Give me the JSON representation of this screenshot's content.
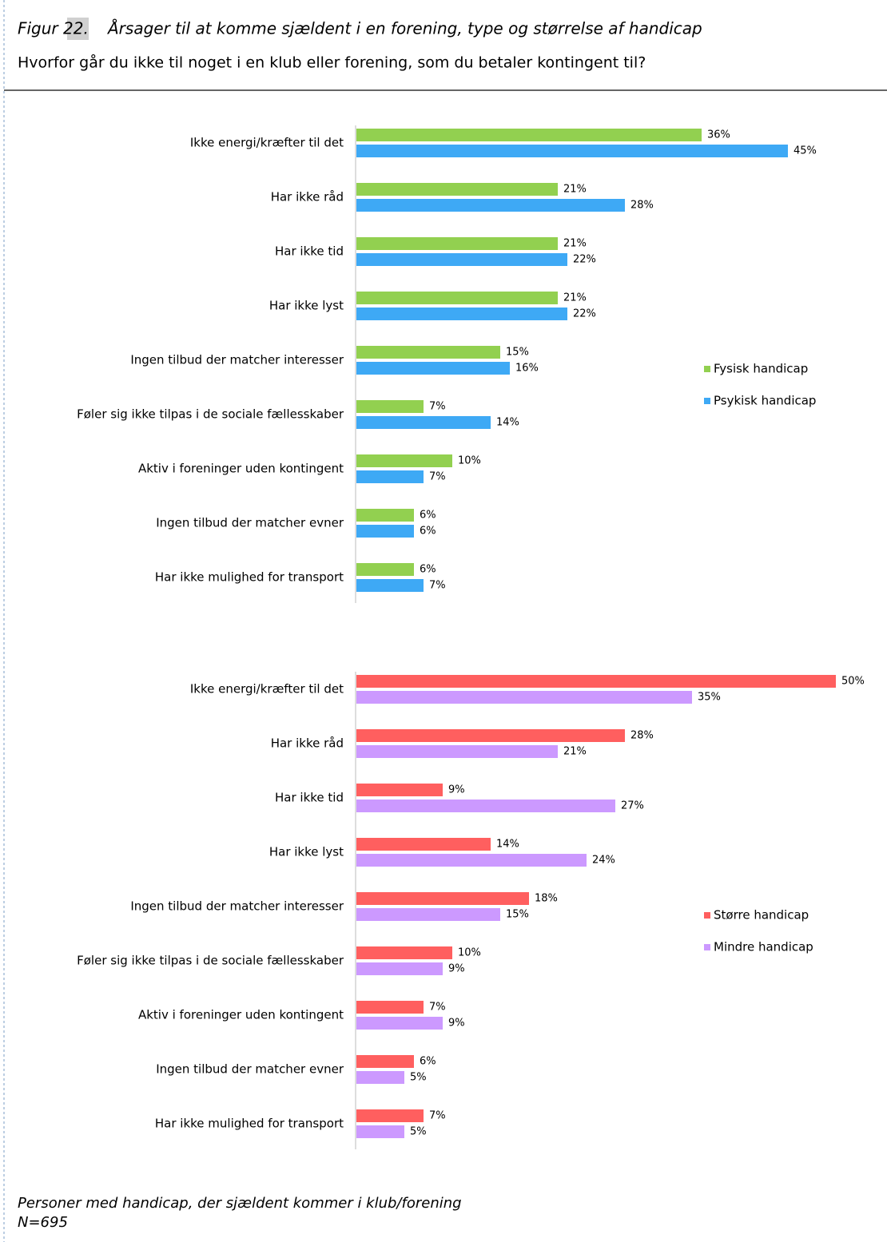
{
  "figure": {
    "label": "Figur 22.",
    "title": "Årsager til at komme sjældent i en forening, type og størrelse af handicap",
    "question": "Hvorfor går du ikke til noget i en klub eller forening, som du betaler kontingent til?",
    "note": "Personer med handicap, der sjældent kommer i klub/forening",
    "n": "N=695"
  },
  "chart_data": [
    {
      "type": "bar",
      "orientation": "horizontal",
      "categories": [
        "Ikke energi/kræfter til det",
        "Har ikke råd",
        "Har ikke tid",
        "Har ikke lyst",
        "Ingen tilbud der matcher interesser",
        "Føler sig ikke tilpas i de sociale fællesskaber",
        "Aktiv i foreninger uden kontingent",
        "Ingen tilbud der matcher evner",
        "Har ikke mulighed for transport"
      ],
      "series": [
        {
          "name": "Fysisk handicap",
          "color": "#92d050",
          "values": [
            36,
            21,
            21,
            21,
            15,
            7,
            10,
            6,
            6
          ],
          "value_labels": [
            "36%",
            "21%",
            "21%",
            "21%",
            "15%",
            "7%",
            "10%",
            "6%",
            "6%"
          ]
        },
        {
          "name": "Psykisk handicap",
          "color": "#3ea9f5",
          "values": [
            45,
            28,
            22,
            22,
            16,
            14,
            7,
            6,
            7
          ],
          "value_labels": [
            "45%",
            "28%",
            "22%",
            "22%",
            "16%",
            "14%",
            "7%",
            "6%",
            "7%"
          ]
        }
      ],
      "legend": "right"
    },
    {
      "type": "bar",
      "orientation": "horizontal",
      "categories": [
        "Ikke energi/kræfter til det",
        "Har ikke råd",
        "Har ikke tid",
        "Har ikke lyst",
        "Ingen tilbud der matcher interesser",
        "Føler sig ikke tilpas i de sociale fællesskaber",
        "Aktiv i foreninger uden kontingent",
        "Ingen tilbud der matcher evner",
        "Har ikke mulighed for transport"
      ],
      "series": [
        {
          "name": "Større handicap",
          "color": "#ff5f5f",
          "values": [
            50,
            28,
            9,
            14,
            18,
            10,
            7,
            6,
            7
          ],
          "value_labels": [
            "50%",
            "28%",
            "9%",
            "14%",
            "18%",
            "10%",
            "7%",
            "6%",
            "7%"
          ]
        },
        {
          "name": "Mindre handicap",
          "color": "#cc99ff",
          "values": [
            35,
            21,
            27,
            24,
            15,
            9,
            9,
            5,
            5
          ],
          "value_labels": [
            "35%",
            "21%",
            "27%",
            "24%",
            "15%",
            "9%",
            "9%",
            "5%",
            "5%"
          ]
        }
      ],
      "legend": "right"
    }
  ]
}
